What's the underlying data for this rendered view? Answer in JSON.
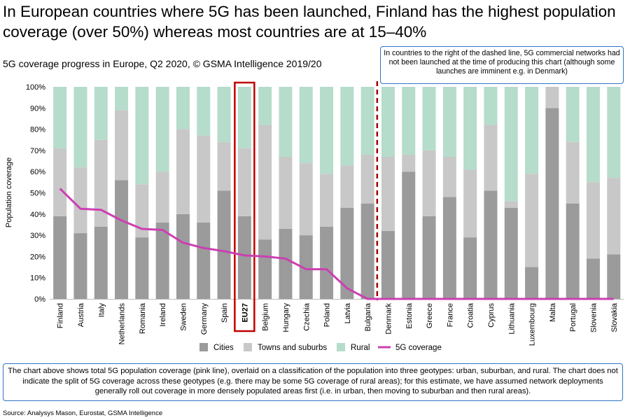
{
  "headline": "In European countries where 5G has been launched, Finland has the highest population coverage (over 50%) whereas most countries are at 15–40%",
  "subtitle": "5G coverage progress in Europe, Q2 2020, © GSMA Intelligence 2019/20",
  "note_top": "In countries to the right of the dashed line, 5G commercial networks had not been launched at the time of producing this chart (although some launches are imminent e.g. in Denmark)",
  "note_bottom": "The chart above shows total 5G population coverage (pink line), overlaid on a classification of the population into three geotypes: urban, suburban, and rural. The chart does not indicate the split of 5G coverage across these geotypes (e.g. there may be some 5G coverage of rural areas); for this estimate, we have assumed network deployments generally roll out coverage in more densely populated areas first (i.e. in urban, then moving to suburban and then rural areas).",
  "source": "Source: Analysys Mason, Eurostat, GSMA Intelligence",
  "colors": {
    "cities": "#9b9b9b",
    "towns": "#c8c8c8",
    "rural": "#b6dccb",
    "coverage": "#cc3fb2",
    "highlight": "#c00000",
    "divider": "#a30000"
  },
  "chart_data": {
    "type": "bar",
    "stacked": true,
    "ylabel": "Population coverage",
    "ylim": [
      0,
      100
    ],
    "yticks": [
      "0%",
      "10%",
      "20%",
      "30%",
      "40%",
      "50%",
      "60%",
      "70%",
      "80%",
      "90%",
      "100%"
    ],
    "categories": [
      "Finland",
      "Austria",
      "Italy",
      "Netherlands",
      "Romania",
      "Ireland",
      "Sweden",
      "Germany",
      "Spain",
      "EU27",
      "Belgium",
      "Hungary",
      "Czechia",
      "Poland",
      "Latvia",
      "Bulgaria",
      "Denmark",
      "Estonia",
      "Greece",
      "France",
      "Croatia",
      "Cyprus",
      "Lithuania",
      "Luxembourg",
      "Malta",
      "Portugal",
      "Slovenia",
      "Slovakia"
    ],
    "highlight_category": "EU27",
    "divider_after": "Bulgaria",
    "series": [
      {
        "name": "Cities",
        "values": [
          39,
          31,
          34,
          56,
          29,
          36,
          40,
          36,
          51,
          39,
          28,
          33,
          30,
          34,
          43,
          45,
          32,
          60,
          39,
          48,
          29,
          51,
          43,
          15,
          90,
          45,
          19,
          21
        ]
      },
      {
        "name": "Towns and suburbs",
        "values": [
          32,
          31,
          41,
          33,
          25,
          24,
          40,
          41,
          23,
          32,
          54,
          34,
          34,
          25,
          20,
          23,
          35,
          8,
          31,
          19,
          32,
          31,
          3,
          44,
          10,
          29,
          36,
          36
        ]
      },
      {
        "name": "Rural",
        "values": [
          29,
          38,
          25,
          11,
          46,
          40,
          20,
          23,
          26,
          29,
          18,
          33,
          36,
          41,
          37,
          32,
          33,
          32,
          30,
          33,
          39,
          18,
          54,
          41,
          0,
          26,
          45,
          43
        ]
      },
      {
        "name": "5G coverage",
        "type": "line",
        "values": [
          52,
          42.5,
          42,
          37,
          33,
          32.5,
          26.5,
          24,
          22.5,
          20.5,
          20,
          19,
          14,
          14,
          5,
          0,
          0,
          0,
          0,
          0,
          0,
          0,
          0,
          0,
          0,
          0,
          0,
          0
        ]
      }
    ]
  }
}
